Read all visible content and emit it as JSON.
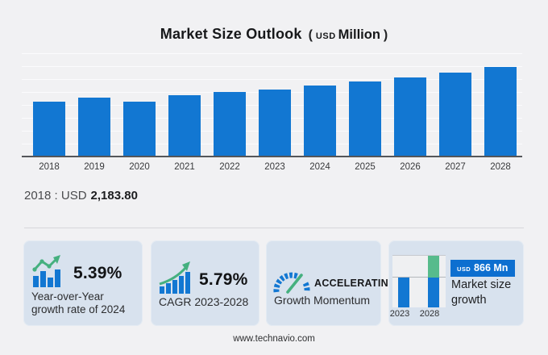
{
  "header": {
    "title": "Market Size Outlook",
    "unit_open": "(",
    "unit_currency": "USD",
    "unit_label": "Million",
    "unit_close": ")"
  },
  "chart_data": {
    "type": "bar",
    "title": "Market Size Outlook (USD Million)",
    "unit": "USD Million",
    "categories": [
      "2018",
      "2019",
      "2020",
      "2021",
      "2022",
      "2023",
      "2024",
      "2025",
      "2026",
      "2027",
      "2028"
    ],
    "values": [
      2183.8,
      2340,
      2195,
      2430,
      2560,
      2663,
      2807,
      2965,
      3140,
      3330,
      3529
    ],
    "labeled_values": {
      "2018": "2,183.80"
    },
    "values_estimated_from_bar_heights": true,
    "ylim": [
      0,
      4080
    ],
    "xlabel": "",
    "ylabel": "",
    "grid": "horizontal",
    "legend": false,
    "bar_color": "#1277d2"
  },
  "annotation": {
    "label": "2018 : USD",
    "value": "2,183.80"
  },
  "cards": [
    {
      "icon": "bar-chart-trend-up-icon",
      "metric": "5.39%",
      "desc_line1": "Year-over-Year",
      "desc_line2": "growth rate of 2024"
    },
    {
      "icon": "ascending-bars-arrow-icon",
      "metric": "5.79%",
      "desc": "CAGR 2023-2028"
    },
    {
      "icon": "speedometer-icon",
      "metric": "ACCELERATING",
      "desc": "Growth Momentum"
    },
    {
      "icon": "mini-growth-bars-icon",
      "badge_currency": "USD",
      "badge_value": "866 Mn",
      "desc": "Market size growth",
      "mini_chart": {
        "type": "bar",
        "categories": [
          "2023",
          "2028"
        ],
        "base_value": 2663,
        "end_value": 3529,
        "growth_usd_mn": 866
      }
    }
  ],
  "footer": {
    "url": "www.technavio.com"
  },
  "colors": {
    "bar_blue": "#1277d2",
    "accent_green": "#45b07f",
    "badge_blue": "#0d6fd0",
    "card_bg": "#d8e2ee",
    "page_bg": "#f1f1f3"
  }
}
